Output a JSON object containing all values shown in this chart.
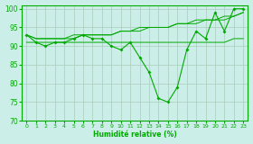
{
  "xlabel": "Humidité relative (%)",
  "background_color": "#cceee8",
  "grid_color": "#aaccbb",
  "line_color": "#00aa00",
  "ylim": [
    70,
    101
  ],
  "yticks": [
    70,
    75,
    80,
    85,
    90,
    95,
    100
  ],
  "xlim": [
    -0.5,
    23.5
  ],
  "xticks": [
    0,
    1,
    2,
    3,
    4,
    5,
    6,
    7,
    8,
    9,
    10,
    11,
    12,
    13,
    14,
    15,
    16,
    17,
    18,
    19,
    20,
    21,
    22,
    23
  ],
  "series1": [
    93,
    91,
    90,
    91,
    91,
    92,
    93,
    92,
    92,
    90,
    89,
    91,
    87,
    83,
    76,
    75,
    79,
    89,
    94,
    92,
    99,
    94,
    100,
    100
  ],
  "series2": [
    91,
    91,
    91,
    91,
    91,
    91,
    91,
    91,
    91,
    91,
    91,
    91,
    91,
    91,
    91,
    91,
    91,
    91,
    91,
    91,
    91,
    91,
    92,
    92
  ],
  "series3": [
    93,
    92,
    92,
    92,
    92,
    92,
    93,
    93,
    93,
    93,
    94,
    94,
    94,
    95,
    95,
    95,
    96,
    96,
    97,
    97,
    97,
    98,
    98,
    99
  ],
  "series4": [
    93,
    92,
    92,
    92,
    92,
    93,
    93,
    93,
    93,
    93,
    94,
    94,
    95,
    95,
    95,
    95,
    96,
    96,
    96,
    97,
    97,
    97,
    98,
    99
  ]
}
